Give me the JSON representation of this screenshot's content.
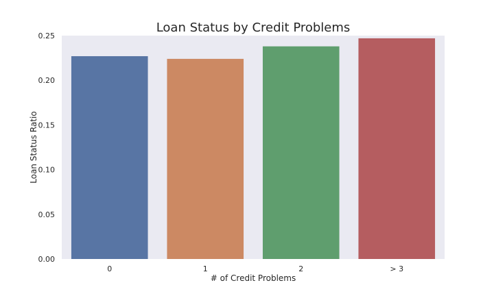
{
  "chart_data": {
    "type": "bar",
    "title": "Loan Status by Credit Problems",
    "xlabel": "# of Credit Problems",
    "ylabel": "Loan Status Ratio",
    "categories": [
      "0",
      "1",
      "2",
      "> 3"
    ],
    "values": [
      0.227,
      0.224,
      0.238,
      0.247
    ],
    "colors": [
      "#5875a4",
      "#cc8963",
      "#5f9e6e",
      "#b55d60"
    ],
    "ylim": [
      0,
      0.25
    ],
    "yticks": [
      "0.00",
      "0.05",
      "0.10",
      "0.15",
      "0.20",
      "0.25"
    ],
    "grid": false,
    "background": "#eaeaf2"
  }
}
